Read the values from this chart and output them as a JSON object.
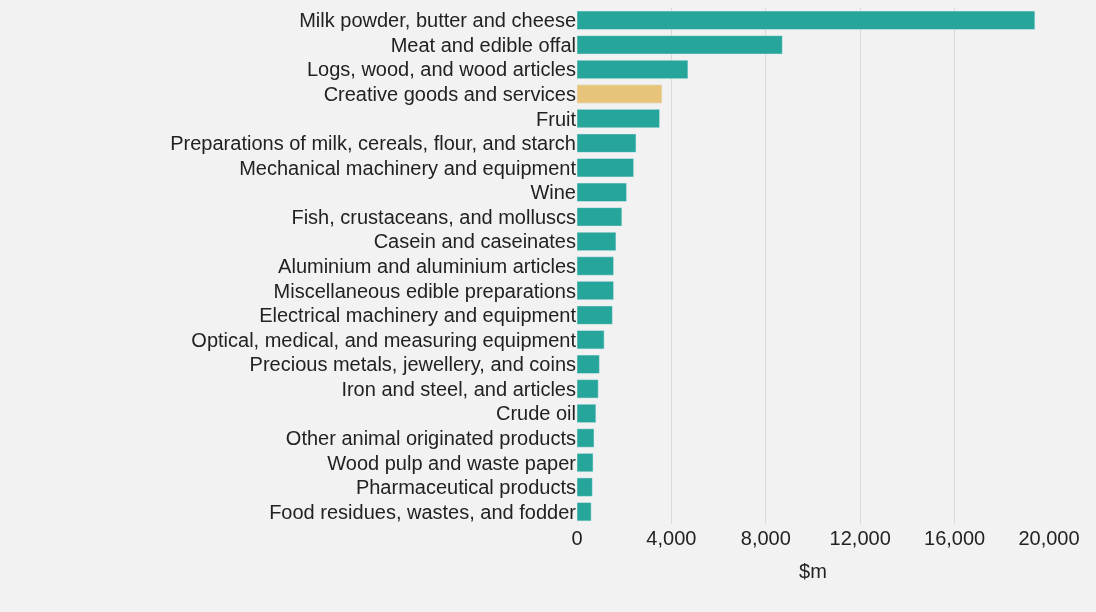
{
  "chart_data": {
    "type": "bar",
    "orientation": "horizontal",
    "xlabel": "$m",
    "categories": [
      "Milk powder, butter and cheese",
      "Meat and edible offal",
      "Logs, wood, and wood articles",
      "Creative goods and services",
      "Fruit",
      "Preparations of milk, cereals, flour, and starch",
      "Mechanical machinery and equipment",
      "Wine",
      "Fish, crustaceans, and molluscs",
      "Casein and caseinates",
      "Aluminium and aluminium articles",
      "Miscellaneous edible preparations",
      "Electrical machinery and equipment",
      "Optical, medical, and measuring equipment",
      "Precious metals, jewellery, and coins",
      "Iron and steel, and articles",
      "Crude oil",
      "Other animal originated products",
      "Wood pulp and waste paper",
      "Pharmaceutical products",
      "Food residues, wastes, and fodder"
    ],
    "values": [
      19400,
      8700,
      4700,
      3600,
      3500,
      2500,
      2400,
      2100,
      1900,
      1650,
      1550,
      1550,
      1500,
      1150,
      950,
      900,
      800,
      720,
      680,
      650,
      600
    ],
    "colors": [
      "#26a69a",
      "#26a69a",
      "#26a69a",
      "#e8c47a",
      "#26a69a",
      "#26a69a",
      "#26a69a",
      "#26a69a",
      "#26a69a",
      "#26a69a",
      "#26a69a",
      "#26a69a",
      "#26a69a",
      "#26a69a",
      "#26a69a",
      "#26a69a",
      "#26a69a",
      "#26a69a",
      "#26a69a",
      "#26a69a",
      "#26a69a"
    ],
    "xlim": [
      0,
      20000
    ],
    "xticks": [
      {
        "value": 0,
        "label": "0"
      },
      {
        "value": 4000,
        "label": "4,000"
      },
      {
        "value": 8000,
        "label": "8,000"
      },
      {
        "value": 12000,
        "label": "12,000"
      },
      {
        "value": 16000,
        "label": "16,000"
      },
      {
        "value": 20000,
        "label": "20,000"
      }
    ],
    "grid": "x",
    "legend": false
  }
}
